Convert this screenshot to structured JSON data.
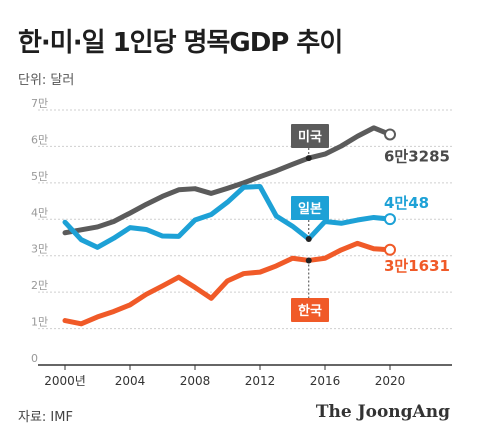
{
  "header": {
    "title": "한·미·일 1인당 명목GDP 추이",
    "unit": "단위: 달러"
  },
  "footer": {
    "source": "자료: IMF",
    "logo": "The JoongAng"
  },
  "colors": {
    "usa": "#5b5b5b",
    "japan": "#1da1d6",
    "korea": "#f05a28",
    "grid": "#cfcfcf",
    "axis": "#333333",
    "tick_text": "#999999"
  },
  "chart_data": {
    "type": "line",
    "title": "한·미·일 1인당 명목GDP 추이",
    "ylabel": "단위: 달러",
    "xlabel": "",
    "xlim": [
      2000,
      2020
    ],
    "ylim": [
      0,
      70000
    ],
    "grid": "horizontal",
    "x_tick_labels": [
      {
        "x": 2000,
        "label": "2000년"
      },
      {
        "x": 2004,
        "label": "2004"
      },
      {
        "x": 2008,
        "label": "2008"
      },
      {
        "x": 2012,
        "label": "2012"
      },
      {
        "x": 2016,
        "label": "2016"
      },
      {
        "x": 2020,
        "label": "2020"
      }
    ],
    "y_tick_labels": [
      {
        "y": 0,
        "label": "0"
      },
      {
        "y": 10000,
        "label": "1만"
      },
      {
        "y": 20000,
        "label": "2만"
      },
      {
        "y": 30000,
        "label": "3만"
      },
      {
        "y": 40000,
        "label": "4만"
      },
      {
        "y": 50000,
        "label": "5만"
      },
      {
        "y": 60000,
        "label": "6만"
      },
      {
        "y": 70000,
        "label": "7만"
      }
    ],
    "x": [
      2000,
      2001,
      2002,
      2003,
      2004,
      2005,
      2006,
      2007,
      2008,
      2009,
      2010,
      2011,
      2012,
      2013,
      2014,
      2015,
      2016,
      2017,
      2018,
      2019,
      2020
    ],
    "series": [
      {
        "key": "usa",
        "name": "미국",
        "values": [
          36300,
          37100,
          37900,
          39400,
          41700,
          44100,
          46300,
          48100,
          48400,
          47100,
          48500,
          50000,
          51700,
          53300,
          55100,
          56800,
          57900,
          60100,
          62800,
          65100,
          63285
        ],
        "end_label": "6만3285",
        "marker_x": 2015
      },
      {
        "key": "japan",
        "name": "일본",
        "values": [
          39200,
          34400,
          32300,
          34800,
          37700,
          37200,
          35400,
          35300,
          39800,
          41300,
          44700,
          48800,
          49000,
          40900,
          38100,
          34600,
          39400,
          38900,
          39800,
          40500,
          40048
        ],
        "end_label": "4만48",
        "marker_x": 2015
      },
      {
        "key": "korea",
        "name": "한국",
        "values": [
          12200,
          11300,
          13200,
          14700,
          16500,
          19400,
          21700,
          24100,
          21300,
          18300,
          23100,
          25100,
          25500,
          27200,
          29300,
          28700,
          29300,
          31600,
          33400,
          31900,
          31631
        ],
        "end_label": "3만1631",
        "marker_x": 2015
      }
    ]
  }
}
